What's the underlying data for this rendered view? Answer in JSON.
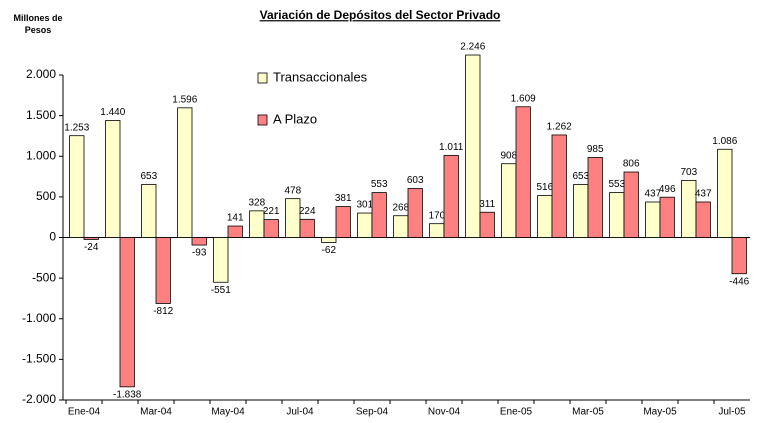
{
  "chart_data": {
    "type": "bar",
    "title": "Variación de Depósitos del Sector Privado",
    "y_label": "Millones de Pesos",
    "categories": [
      "Ene-04",
      null,
      "Mar-04",
      null,
      "May-04",
      null,
      "Jul-04",
      null,
      "Sep-04",
      null,
      "Nov-04",
      null,
      "Ene-05",
      null,
      "Mar-05",
      null,
      "May-05",
      null,
      "Jul-05"
    ],
    "series": [
      {
        "name": "Transaccionales",
        "color": "#ffffcc",
        "values": [
          1253,
          1440,
          653,
          1596,
          -551,
          328,
          478,
          -62,
          301,
          268,
          170,
          2246,
          908,
          516,
          653,
          553,
          437,
          703,
          1086
        ],
        "value_labels": [
          "1.253",
          "1.440",
          "653",
          "1.596",
          "-551",
          "328",
          "478",
          "-62",
          "301",
          "268",
          "170",
          "2.246",
          "908",
          "516",
          "653",
          "553",
          "437",
          "703",
          "1.086"
        ]
      },
      {
        "name": "A Plazo",
        "color": "#ff8080",
        "values": [
          -24,
          -1838,
          -812,
          -93,
          141,
          221,
          224,
          381,
          553,
          603,
          1011,
          311,
          1609,
          1262,
          985,
          806,
          496,
          437,
          -446
        ],
        "value_labels": [
          "-24",
          "-1.838",
          "-812",
          "-93",
          "141",
          "221",
          "224",
          "381",
          "553",
          "603",
          "1.011",
          "311",
          "1.609",
          "1.262",
          "985",
          "806",
          "496",
          "437",
          "-446"
        ]
      }
    ],
    "ylim": [
      -2000,
      2000
    ],
    "yticks": [
      {
        "value": -2000,
        "label": "-2.000"
      },
      {
        "value": -1500,
        "label": "-1.500"
      },
      {
        "value": -1000,
        "label": "-1.000"
      },
      -500,
      0,
      500,
      {
        "value": 1000,
        "label": "1.000"
      },
      {
        "value": 1500,
        "label": "1.500"
      },
      {
        "value": 2000,
        "label": "2.000"
      }
    ],
    "grid": false,
    "legend": "top-left"
  }
}
